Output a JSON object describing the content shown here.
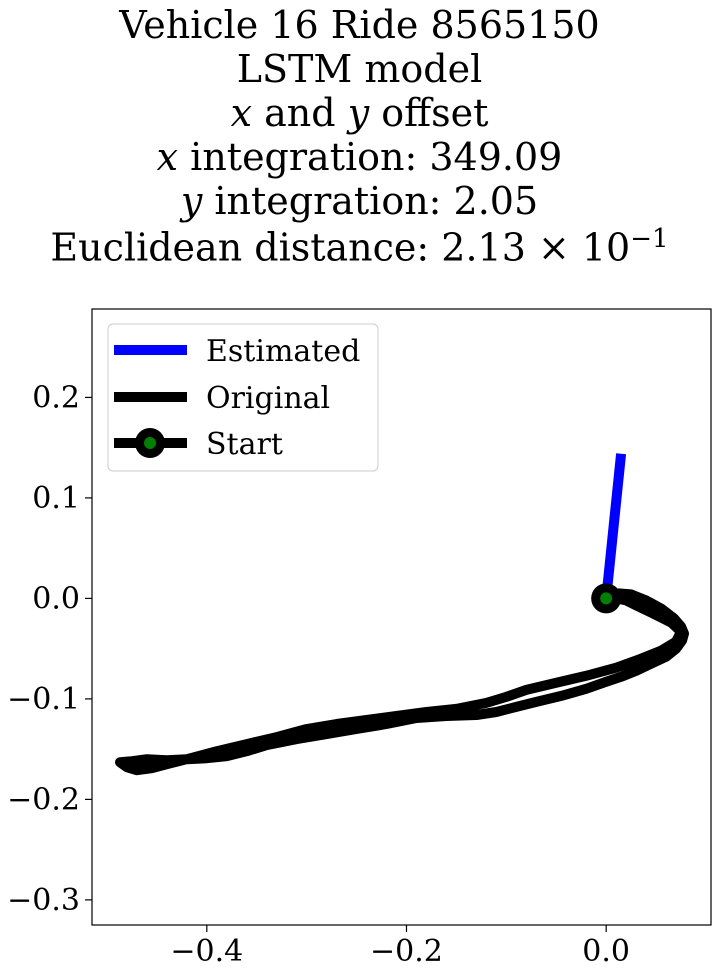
{
  "chart_data": {
    "type": "line",
    "title_lines": [
      "Vehicle 16 Ride 8565150",
      "LSTM model",
      "x and y offset",
      "x integration: 349.09",
      "y integration: 2.05",
      "Euclidean distance: 2.13 × 10⁻¹"
    ],
    "title_parts": {
      "line3_a": "x",
      "line3_b": " and ",
      "line3_c": "y",
      "line3_d": " offset",
      "line4_a": "x",
      "line4_b": " integration: 349.09",
      "line5_a": "y",
      "line5_b": " integration: 2.05",
      "line6_a": "Euclidean distance: 2.13 × 10",
      "line6_exp": "−1"
    },
    "xlim": [
      -0.515,
      0.105
    ],
    "ylim": [
      -0.325,
      0.288
    ],
    "x_ticks": [
      -0.4,
      -0.2,
      0.0
    ],
    "x_tick_labels": [
      "−0.4",
      "−0.2",
      "0.0"
    ],
    "y_ticks": [
      0.2,
      0.1,
      0.0,
      -0.1,
      -0.2,
      -0.3
    ],
    "y_tick_labels": [
      "0.2",
      "0.1",
      "0.0",
      "−0.1",
      "−0.2",
      "−0.3"
    ],
    "grid": false,
    "legend_placement": "top-left",
    "series": [
      {
        "name": "Estimated",
        "color": "#0000ff",
        "x": [
          0.0,
          0.015
        ],
        "y": [
          0.0,
          0.144
        ]
      },
      {
        "name": "Original",
        "color": "#000000",
        "x": [
          0.0,
          0.012,
          0.025,
          0.04,
          0.055,
          0.068,
          0.075,
          0.078,
          0.076,
          0.07,
          0.06,
          0.045,
          0.03,
          0.015,
          0.0,
          -0.02,
          -0.045,
          -0.07,
          -0.09,
          -0.11,
          -0.13,
          -0.16,
          -0.19,
          -0.22,
          -0.25,
          -0.28,
          -0.31,
          -0.34,
          -0.36,
          -0.38,
          -0.4,
          -0.42,
          -0.44,
          -0.46,
          -0.475,
          -0.487,
          -0.48,
          -0.47,
          -0.455,
          -0.44,
          -0.42,
          -0.39,
          -0.36,
          -0.33,
          -0.3,
          -0.27,
          -0.24,
          -0.21,
          -0.18,
          -0.15,
          -0.12,
          -0.1,
          -0.08,
          -0.05,
          -0.02,
          0.01,
          0.035,
          0.055,
          0.07,
          0.075,
          0.065,
          0.045,
          0.03,
          0.02,
          0.01,
          0.0
        ],
        "y": [
          0.0,
          0.005,
          0.004,
          -0.002,
          -0.01,
          -0.02,
          -0.028,
          -0.035,
          -0.042,
          -0.05,
          -0.058,
          -0.065,
          -0.072,
          -0.078,
          -0.083,
          -0.09,
          -0.097,
          -0.103,
          -0.108,
          -0.113,
          -0.116,
          -0.117,
          -0.119,
          -0.125,
          -0.13,
          -0.135,
          -0.14,
          -0.146,
          -0.152,
          -0.157,
          -0.159,
          -0.16,
          -0.161,
          -0.16,
          -0.162,
          -0.163,
          -0.168,
          -0.171,
          -0.169,
          -0.165,
          -0.16,
          -0.152,
          -0.145,
          -0.138,
          -0.13,
          -0.125,
          -0.121,
          -0.117,
          -0.113,
          -0.11,
          -0.104,
          -0.098,
          -0.091,
          -0.084,
          -0.077,
          -0.069,
          -0.06,
          -0.052,
          -0.043,
          -0.033,
          -0.024,
          -0.014,
          -0.007,
          -0.002,
          0.0,
          0.0
        ]
      },
      {
        "name": "Start",
        "color": "#000000",
        "marker_fill": "#008000",
        "x": [
          0.0
        ],
        "y": [
          0.0
        ]
      }
    ]
  }
}
